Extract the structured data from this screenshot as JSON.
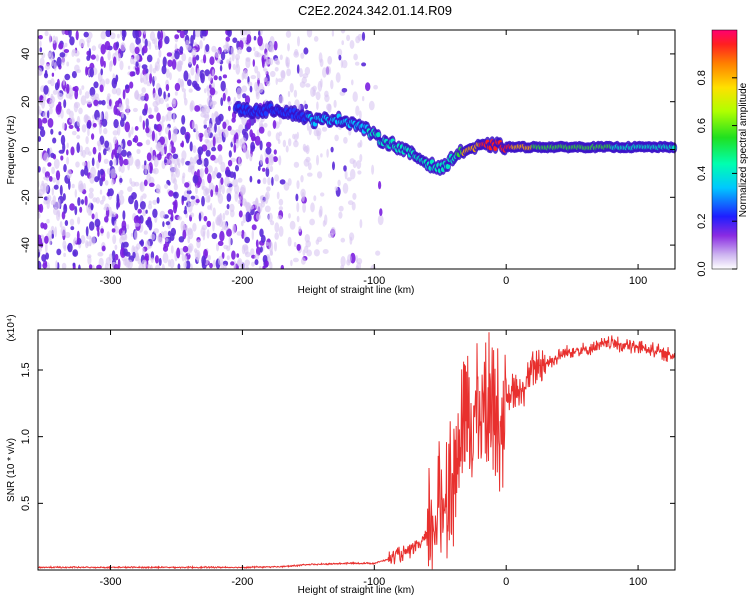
{
  "title": "C2E2.2024.342.01.14.R09",
  "colors": {
    "snr_line": "#e8302e",
    "spec_low": "#d9c7f2",
    "spec_mid": "#7b1fe0",
    "spec_track": "#00e8ff"
  },
  "chart_data": [
    {
      "type": "heatmap",
      "xlabel": "Height of straight line (km)",
      "ylabel": "Frequency (Hz)",
      "xlim": [
        -355,
        128
      ],
      "ylim": [
        -50,
        50
      ],
      "x_ticks": [
        -300,
        -200,
        -100,
        0,
        100
      ],
      "y_ticks": [
        -40,
        -20,
        0,
        20,
        40
      ],
      "x_tick_labels": [
        "-300",
        "-200",
        "-100",
        "0",
        "100"
      ],
      "y_tick_labels": [
        "-40",
        "-20",
        "0",
        "20",
        "40"
      ],
      "colorbar": {
        "label": "Normalized spectral amplitude",
        "range": [
          0,
          1
        ],
        "ticks": [
          0.0,
          0.2,
          0.4,
          0.6,
          0.8
        ],
        "tick_labels": [
          "0.0",
          "0.2",
          "0.4",
          "0.6",
          "0.8"
        ]
      },
      "grid": false,
      "dominant_frequency_track": {
        "x": [
          -205,
          -190,
          -175,
          -160,
          -145,
          -130,
          -115,
          -105,
          -95,
          -85,
          -75,
          -65,
          -55,
          -48,
          -40,
          -30,
          -20,
          -10,
          0,
          20,
          50,
          80,
          100,
          128
        ],
        "y": [
          17,
          16,
          17,
          15,
          12,
          13,
          11,
          8,
          4,
          2,
          -1,
          -4,
          -7,
          -8,
          -3,
          0,
          1,
          2,
          1,
          1,
          1,
          1,
          1,
          1
        ],
        "amplitude": [
          0.25,
          0.3,
          0.35,
          0.35,
          0.4,
          0.4,
          0.42,
          0.45,
          0.45,
          0.45,
          0.45,
          0.45,
          0.45,
          0.45,
          0.5,
          0.7,
          0.85,
          0.9,
          0.9,
          0.65,
          0.6,
          0.55,
          0.5,
          0.5
        ]
      }
    },
    {
      "type": "line",
      "xlabel": "Height of straight line (km)",
      "ylabel": "SNR (10 * v/v)",
      "y_exponent_label": "(x10⁴)",
      "xlim": [
        -355,
        128
      ],
      "ylim": [
        0,
        1.8
      ],
      "x_ticks": [
        -300,
        -200,
        -100,
        0,
        100
      ],
      "y_ticks": [
        0.5,
        1.0,
        1.5
      ],
      "x_tick_labels": [
        "-300",
        "-200",
        "-100",
        "0",
        "100"
      ],
      "y_tick_labels": [
        "0.5",
        "1.0",
        "1.5"
      ],
      "grid": false,
      "series": [
        {
          "x": [
            -355,
            -300,
            -250,
            -200,
            -170,
            -150,
            -120,
            -100,
            -90,
            -80,
            -70,
            -60,
            -50,
            -45,
            -40,
            -35,
            -30,
            -25,
            -20,
            -15,
            -10,
            -5,
            0,
            5,
            10,
            15,
            20,
            25,
            30,
            40,
            50,
            60,
            70,
            80,
            90,
            100,
            110,
            120,
            128
          ],
          "y": [
            0.02,
            0.02,
            0.02,
            0.02,
            0.025,
            0.04,
            0.05,
            0.05,
            0.08,
            0.12,
            0.15,
            0.25,
            0.45,
            0.6,
            0.7,
            0.95,
            1.1,
            1.15,
            1.2,
            1.25,
            1.3,
            1.1,
            1.2,
            1.35,
            1.3,
            1.4,
            1.5,
            1.55,
            1.55,
            1.6,
            1.65,
            1.65,
            1.68,
            1.7,
            1.68,
            1.67,
            1.66,
            1.62,
            1.6
          ]
        }
      ]
    }
  ]
}
